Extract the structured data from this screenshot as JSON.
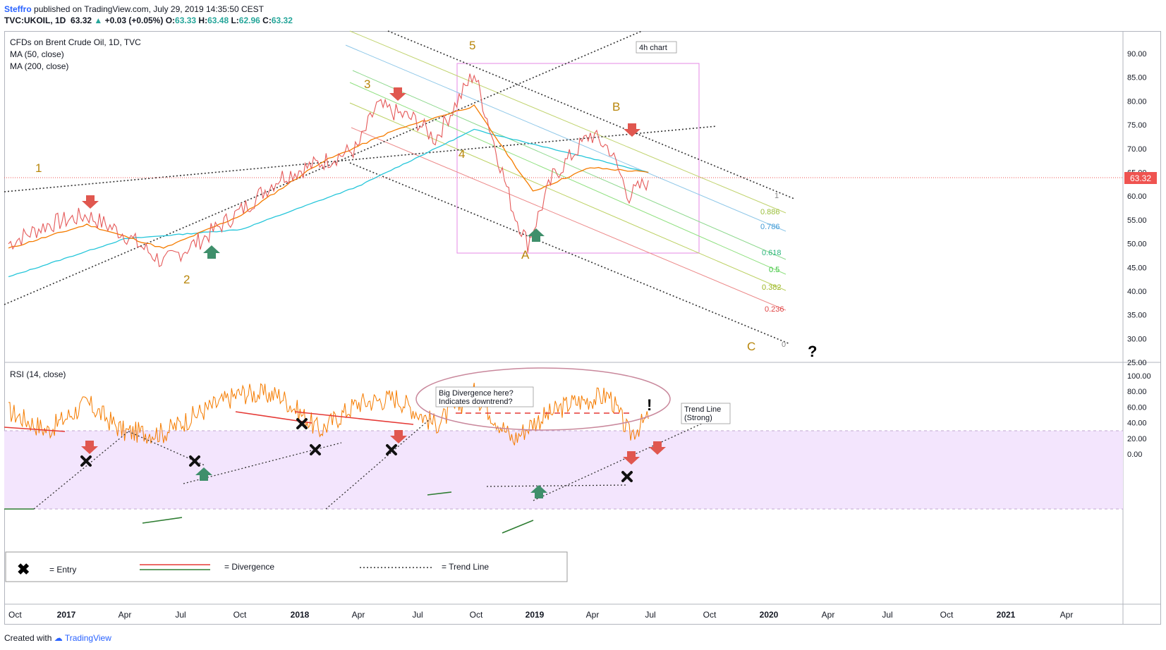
{
  "header": {
    "author": "Steffro",
    "published": "published on TradingView.com, July 29, 2019 14:35:50 CEST",
    "symbol": "TVC:UKOIL, 1D",
    "last": "63.32",
    "change_arrow": "▲",
    "change": "+0.03 (+0.05%)",
    "o_label": "O:",
    "o": "63.33",
    "h_label": "H:",
    "h": "63.48",
    "l_label": "L:",
    "l": "62.96",
    "c_label": "C:",
    "c": "63.32"
  },
  "legend": {
    "title": "CFDs on Brent Crude Oil, 1D, TVC",
    "ma50": "MA (50, close)",
    "ma200": "MA (200, close)",
    "rsi": "RSI (14, close)"
  },
  "price_axis": {
    "ticks": [
      "90.00",
      "85.00",
      "80.00",
      "75.00",
      "70.00",
      "65.00",
      "60.00",
      "55.00",
      "50.00",
      "45.00",
      "40.00",
      "35.00",
      "30.00",
      "25.00"
    ],
    "current_price": "63.32"
  },
  "rsi_axis": {
    "ticks": [
      "100.00",
      "80.00",
      "60.00",
      "40.00",
      "20.00",
      "0.00"
    ]
  },
  "time_axis": {
    "ticks": [
      "Oct",
      "2017",
      "Apr",
      "Jul",
      "Oct",
      "2018",
      "Apr",
      "Jul",
      "Oct",
      "2019",
      "Apr",
      "Jul",
      "Oct",
      "2020",
      "Apr",
      "Jul",
      "Oct",
      "2021",
      "Apr"
    ],
    "bold": [
      "2017",
      "2018",
      "2019",
      "2020",
      "2021"
    ]
  },
  "waves": {
    "w1": "1",
    "w2": "2",
    "w3": "3",
    "w4": "4",
    "w5": "5",
    "wA": "A",
    "wB": "B",
    "wC": "C",
    "question": "?"
  },
  "fib_labels": [
    "1",
    "0.886",
    "0.786",
    "0.618",
    "0.5",
    "0.382",
    "0.236",
    "0"
  ],
  "annotations": {
    "box_label": "4h chart",
    "divergence_line1": "Big Divergence here?",
    "divergence_line2": "Indicates downtrend?",
    "exclaim": "!",
    "trend_line1": "Trend Line",
    "trend_line2": "(Strong)"
  },
  "key": {
    "entry_symbol": "✖",
    "entry": "= Entry",
    "divergence": "= Divergence",
    "trendline": "= Trend Line"
  },
  "footer": {
    "created": "Created with",
    "brand": "TradingView"
  },
  "colors": {
    "price_red": "#ef5350",
    "ma50": "#f57c00",
    "ma200": "#26c6da",
    "rsi_line": "#f57c00",
    "rsi_band": "#f3e5fd",
    "wave": "#b8860b",
    "arrow_down": "#e0574f",
    "arrow_up": "#3f8f6b"
  },
  "chart_data": {
    "type": "line",
    "title": "CFDs on Brent Crude Oil, 1D, TVC",
    "ylim": [
      25,
      92
    ],
    "rsi_ylim": [
      0,
      100
    ],
    "series": [
      {
        "name": "TVC:UKOIL",
        "x": [
          "2016-10",
          "2016-12",
          "2017-02",
          "2017-04",
          "2017-06",
          "2017-08",
          "2017-10",
          "2017-12",
          "2018-02",
          "2018-04",
          "2018-05",
          "2018-07",
          "2018-08",
          "2018-10",
          "2018-12",
          "2018-12-24",
          "2019-02",
          "2019-04",
          "2019-05",
          "2019-06",
          "2019-07"
        ],
        "values": [
          50,
          54,
          56,
          52,
          46,
          51,
          57,
          64,
          67,
          70,
          79,
          76,
          72,
          86,
          57,
          50,
          64,
          73,
          70,
          60,
          63.32
        ]
      },
      {
        "name": "MA (50, close)",
        "x": [
          "2016-10",
          "2017-02",
          "2017-06",
          "2017-10",
          "2018-02",
          "2018-06",
          "2018-10",
          "2019-01",
          "2019-04",
          "2019-07"
        ],
        "values": [
          49,
          54,
          49,
          56,
          67,
          74,
          79,
          61,
          66,
          65
        ]
      },
      {
        "name": "MA (200, close)",
        "x": [
          "2016-10",
          "2017-04",
          "2017-10",
          "2018-04",
          "2018-10",
          "2019-04",
          "2019-07"
        ],
        "values": [
          43,
          51,
          53,
          62,
          74,
          68,
          65
        ]
      },
      {
        "name": "RSI (14, close)",
        "x": [
          "2016-10",
          "2016-12",
          "2017-02",
          "2017-04",
          "2017-06",
          "2017-08",
          "2017-10",
          "2017-12",
          "2018-02",
          "2018-04",
          "2018-06",
          "2018-08",
          "2018-10",
          "2018-12",
          "2019-01",
          "2019-03",
          "2019-05",
          "2019-06",
          "2019-07"
        ],
        "values": [
          55,
          30,
          65,
          28,
          27,
          55,
          78,
          75,
          30,
          65,
          72,
          38,
          78,
          18,
          40,
          65,
          75,
          25,
          45
        ]
      }
    ]
  }
}
